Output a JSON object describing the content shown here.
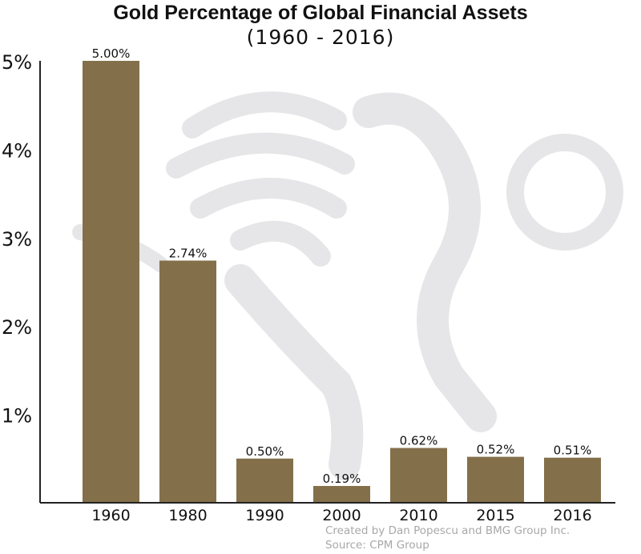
{
  "chart_data": {
    "type": "bar",
    "title": "Gold Percentage of Global Financial Assets",
    "subtitle": "(1960 - 2016)",
    "categories": [
      "1960",
      "1980",
      "1990",
      "2000",
      "2010",
      "2015",
      "2016"
    ],
    "values": [
      5.0,
      2.74,
      0.5,
      0.19,
      0.62,
      0.52,
      0.51
    ],
    "data_labels": [
      "5.00%",
      "2.74%",
      "0.50%",
      "0.19%",
      "0.62%",
      "0.52%",
      "0.51%"
    ],
    "ylim": [
      0,
      5
    ],
    "yticks": [
      1,
      2,
      3,
      4,
      5
    ],
    "ytick_labels": [
      "1%",
      "2%",
      "3%",
      "4%",
      "5%"
    ],
    "xlabel": "",
    "ylabel": "",
    "grid": false,
    "bar_color": "#83704b"
  },
  "footer": {
    "credit": "Created by Dan Popescu and BMG Group Inc.",
    "source": "Source: CPM Group"
  }
}
